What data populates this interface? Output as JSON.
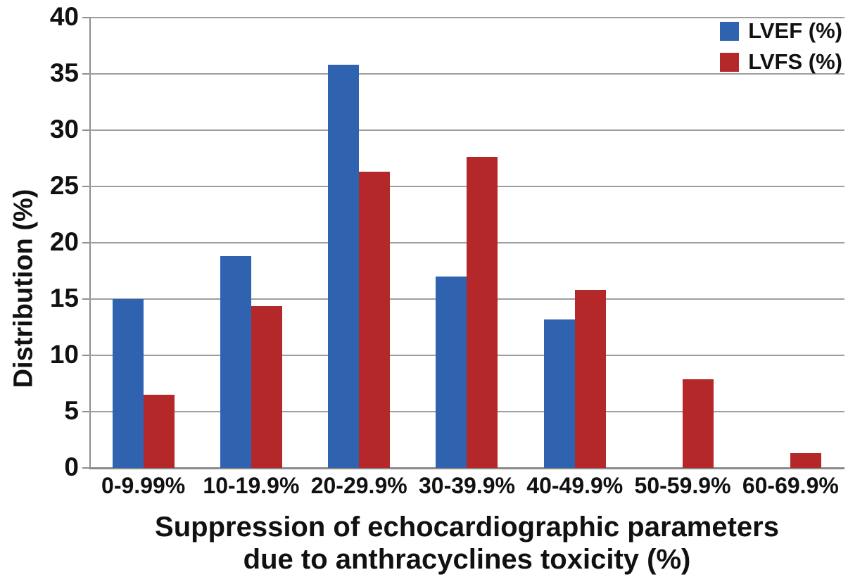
{
  "chart_data": {
    "type": "bar",
    "categories": [
      "0-9.99%",
      "10-19.9%",
      "20-29.9%",
      "30-39.9%",
      "40-49.9%",
      "50-59.9%",
      "60-69.9%"
    ],
    "series": [
      {
        "name": "LVEF (%)",
        "color": "#2f63b0",
        "values": [
          15.0,
          18.8,
          35.8,
          17.0,
          13.2,
          0,
          0
        ]
      },
      {
        "name": "LVFS (%)",
        "color": "#b42829",
        "values": [
          6.5,
          14.4,
          26.3,
          27.6,
          15.8,
          7.9,
          1.3
        ]
      }
    ],
    "xlabel_line1": "Suppression of echocardiographic parameters",
    "xlabel_line2": "due to anthracyclines toxicity (%)",
    "ylabel": "Distribution (%)",
    "ylim": [
      0,
      40
    ],
    "ytick_step": 5,
    "ytick_labels": [
      "0",
      "5",
      "10",
      "15",
      "20",
      "25",
      "30",
      "35",
      "40"
    ],
    "grid": "horizontal",
    "legend_position": "top-right",
    "gridline_color": "#9e9e9e",
    "axis_color": "#8f8f8f",
    "text_color": "#111111",
    "background_color": "#ffffff"
  }
}
